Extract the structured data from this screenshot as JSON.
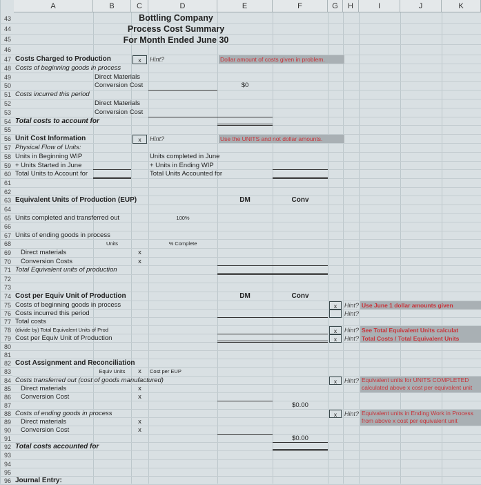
{
  "columns": [
    "A",
    "B",
    "C",
    "D",
    "E",
    "F",
    "G",
    "H",
    "I",
    "J",
    "K"
  ],
  "title": {
    "company": "Bottling Company",
    "report": "Process Cost Summary",
    "period": "For Month Ended June 30"
  },
  "cells": [
    {
      "r": 47,
      "c": "A",
      "t": "Costs Charged to Production",
      "k": "bold"
    },
    {
      "r": 47,
      "c": "C",
      "t": "x",
      "k": "box"
    },
    {
      "r": 47,
      "c": "D",
      "t": "Hint?",
      "k": "hint"
    },
    {
      "r": 47,
      "c": "E",
      "t": "Dollar amount of costs given in problem.",
      "k": "hinttext",
      "w": 178
    },
    {
      "r": 48,
      "c": "A",
      "t": "Costs of beginning goods in process",
      "k": "italic"
    },
    {
      "r": 49,
      "c": "B",
      "t": "Direct Materials",
      "k": ""
    },
    {
      "r": 50,
      "c": "B",
      "t": "Conversion Cost",
      "k": ""
    },
    {
      "r": 50,
      "c": "E",
      "t": "$0",
      "k": "center"
    },
    {
      "r": 51,
      "c": "A",
      "t": "Costs incurred this period",
      "k": "italic"
    },
    {
      "r": 52,
      "c": "B",
      "t": "Direct Materials",
      "k": ""
    },
    {
      "r": 53,
      "c": "B",
      "t": "Conversion Cost",
      "k": ""
    },
    {
      "r": 54,
      "c": "A",
      "t": "Total costs to account for",
      "k": "bolditalic"
    },
    {
      "r": 56,
      "c": "A",
      "t": "Unit Cost Information",
      "k": "bold"
    },
    {
      "r": 56,
      "c": "C",
      "t": "x",
      "k": "box"
    },
    {
      "r": 56,
      "c": "D",
      "t": "Hint?",
      "k": "hint"
    },
    {
      "r": 56,
      "c": "E",
      "t": "Use the UNITS and not dollar amounts.",
      "k": "hinttext",
      "w": 178
    },
    {
      "r": 57,
      "c": "A",
      "t": "Physical Flow of Units:",
      "k": "italic"
    },
    {
      "r": 58,
      "c": "A",
      "t": "Units in Beginning WIP",
      "k": ""
    },
    {
      "r": 58,
      "c": "D",
      "t": "Units completed in June",
      "k": ""
    },
    {
      "r": 59,
      "c": "A",
      "t": "+ Units Started in June",
      "k": ""
    },
    {
      "r": 59,
      "c": "D",
      "t": "+ Units in Ending WIP",
      "k": ""
    },
    {
      "r": 60,
      "c": "A",
      "t": "Total Units to Account for",
      "k": ""
    },
    {
      "r": 60,
      "c": "D",
      "t": "Total Units Accounted for",
      "k": ""
    },
    {
      "r": 63,
      "c": "A",
      "t": "Equivalent Units of Production (EUP)",
      "k": "bold"
    },
    {
      "r": 63,
      "c": "E",
      "t": "DM",
      "k": "bold center"
    },
    {
      "r": 63,
      "c": "F",
      "t": "Conv",
      "k": "bold center"
    },
    {
      "r": 65,
      "c": "A",
      "t": "Units completed and transferred out",
      "k": ""
    },
    {
      "r": 65,
      "c": "D",
      "t": "100%",
      "k": "small center"
    },
    {
      "r": 67,
      "c": "A",
      "t": "Units of ending goods in process",
      "k": ""
    },
    {
      "r": 68,
      "c": "B",
      "t": "Units",
      "k": "small center"
    },
    {
      "r": 68,
      "c": "D",
      "t": "% Complete",
      "k": "small center"
    },
    {
      "r": 69,
      "c": "A",
      "t": "Direct materials",
      "k": "indent"
    },
    {
      "r": 69,
      "c": "C",
      "t": "x",
      "k": "center"
    },
    {
      "r": 70,
      "c": "A",
      "t": "Conversion Costs",
      "k": "indent"
    },
    {
      "r": 70,
      "c": "C",
      "t": "x",
      "k": "center"
    },
    {
      "r": 71,
      "c": "A",
      "t": "Total Equivalent units of production",
      "k": "italic"
    },
    {
      "r": 74,
      "c": "A",
      "t": "Cost per Equiv Unit of Production",
      "k": "bold"
    },
    {
      "r": 74,
      "c": "E",
      "t": "DM",
      "k": "bold center"
    },
    {
      "r": 74,
      "c": "F",
      "t": "Conv",
      "k": "bold center"
    },
    {
      "r": 75,
      "c": "A",
      "t": "Costs of beginning goods in process",
      "k": ""
    },
    {
      "r": 75,
      "c": "G",
      "t": "x",
      "k": "box"
    },
    {
      "r": 75,
      "c": "H",
      "t": "Hint?",
      "k": "hint"
    },
    {
      "r": 75,
      "c": "I",
      "t": "Use June 1 dollar amounts given",
      "k": "hinttext hintbold",
      "w": 180
    },
    {
      "r": 76,
      "c": "A",
      "t": "Costs incurred this period",
      "k": ""
    },
    {
      "r": 76,
      "c": "G",
      "t": "",
      "k": "box"
    },
    {
      "r": 76,
      "c": "H",
      "t": "Hint?",
      "k": "hint"
    },
    {
      "r": 77,
      "c": "A",
      "t": "Total costs",
      "k": ""
    },
    {
      "r": 78,
      "c": "A",
      "t": "(divide by) Total Equivalent Units of Prod",
      "k": "small"
    },
    {
      "r": 78,
      "c": "G",
      "t": "x",
      "k": "box"
    },
    {
      "r": 78,
      "c": "H",
      "t": "Hint?",
      "k": "hint"
    },
    {
      "r": 78,
      "c": "I",
      "t": "See Total Equivalent Units calculat",
      "k": "hinttext hintbold",
      "w": 180
    },
    {
      "r": 79,
      "c": "A",
      "t": "Cost per Equiv Unit of Production",
      "k": ""
    },
    {
      "r": 79,
      "c": "G",
      "t": "x",
      "k": "box"
    },
    {
      "r": 79,
      "c": "H",
      "t": "Hint?",
      "k": "hint"
    },
    {
      "r": 79,
      "c": "I",
      "t": "Total Costs / Total Equivalent Units",
      "k": "hinttext hintbold",
      "w": 180
    },
    {
      "r": 82,
      "c": "A",
      "t": "Cost Assignment and Reconciliation",
      "k": "bold"
    },
    {
      "r": 83,
      "c": "B",
      "t": "Equiv Units",
      "k": "small center"
    },
    {
      "r": 83,
      "c": "C",
      "t": "x",
      "k": "center"
    },
    {
      "r": 83,
      "c": "D",
      "t": "Cost per EUP",
      "k": "small"
    },
    {
      "r": 84,
      "c": "A",
      "t": "Costs transferred out (cost of goods manufactured)",
      "k": "italic"
    },
    {
      "r": 84,
      "c": "G",
      "t": "x",
      "k": "box"
    },
    {
      "r": 84,
      "c": "H",
      "t": "Hint?",
      "k": "hint"
    },
    {
      "r": 84,
      "c": "I",
      "t": "Equivalent units for UNITS COMPLETED calculated above x cost per equivalent unit",
      "k": "hinttext hint2",
      "w": 180,
      "h": 23
    },
    {
      "r": 85,
      "c": "A",
      "t": "Direct materials",
      "k": "indent"
    },
    {
      "r": 85,
      "c": "C",
      "t": "x",
      "k": "center"
    },
    {
      "r": 86,
      "c": "A",
      "t": "Conversion Cost",
      "k": "indent"
    },
    {
      "r": 86,
      "c": "C",
      "t": "x",
      "k": "center"
    },
    {
      "r": 87,
      "c": "F",
      "t": "$0.00",
      "k": "center"
    },
    {
      "r": 88,
      "c": "A",
      "t": "Costs of ending goods in process",
      "k": "italic"
    },
    {
      "r": 88,
      "c": "G",
      "t": "x",
      "k": "box"
    },
    {
      "r": 88,
      "c": "H",
      "t": "Hint?",
      "k": "hint"
    },
    {
      "r": 88,
      "c": "I",
      "t": "Equivalent units in Ending Work in Process from above x cost per equivalent unit",
      "k": "hinttext hint2",
      "w": 180,
      "h": 23
    },
    {
      "r": 89,
      "c": "A",
      "t": "Direct materials",
      "k": "indent"
    },
    {
      "r": 89,
      "c": "C",
      "t": "x",
      "k": "center"
    },
    {
      "r": 90,
      "c": "A",
      "t": "Conversion Cost",
      "k": "indent"
    },
    {
      "r": 90,
      "c": "C",
      "t": "x",
      "k": "center"
    },
    {
      "r": 91,
      "c": "F",
      "t": "$0.00",
      "k": "center"
    },
    {
      "r": 92,
      "c": "A",
      "t": "Total costs accounted for",
      "k": "bolditalic"
    },
    {
      "r": 96,
      "c": "A",
      "t": "Journal Entry:",
      "k": "bold"
    }
  ]
}
